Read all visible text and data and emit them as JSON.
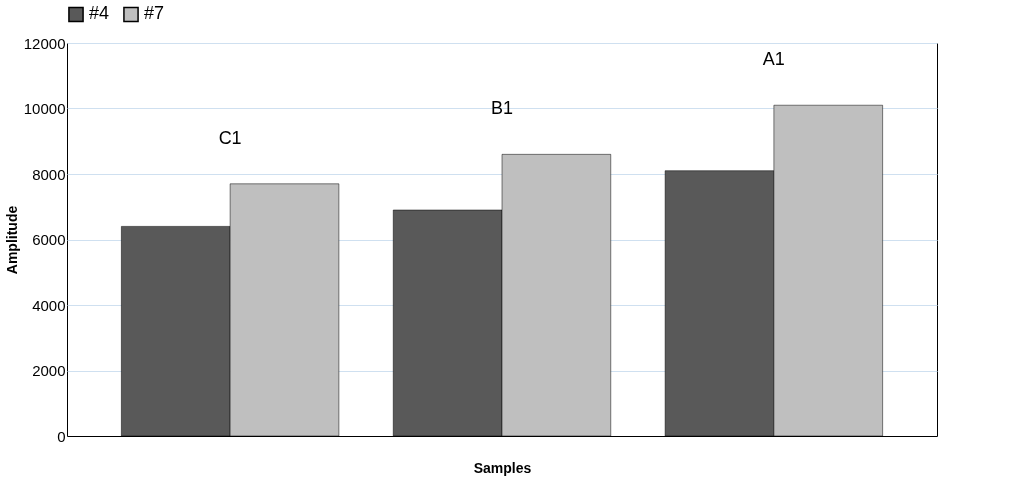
{
  "chart_data": {
    "type": "bar",
    "xlabel": "Samples",
    "ylabel": "Amplitude",
    "categories": [
      "C1",
      "B1",
      "A1"
    ],
    "series": [
      {
        "name": "#4",
        "color": "#595959",
        "values": [
          6400,
          6900,
          8100
        ]
      },
      {
        "name": "#7",
        "color": "#bfbfbf",
        "values": [
          7700,
          8600,
          10100
        ]
      }
    ],
    "ylim": [
      0,
      12000
    ],
    "yticks": [
      0,
      2000,
      4000,
      6000,
      8000,
      10000,
      12000
    ],
    "grid": "y",
    "legend": "top"
  }
}
